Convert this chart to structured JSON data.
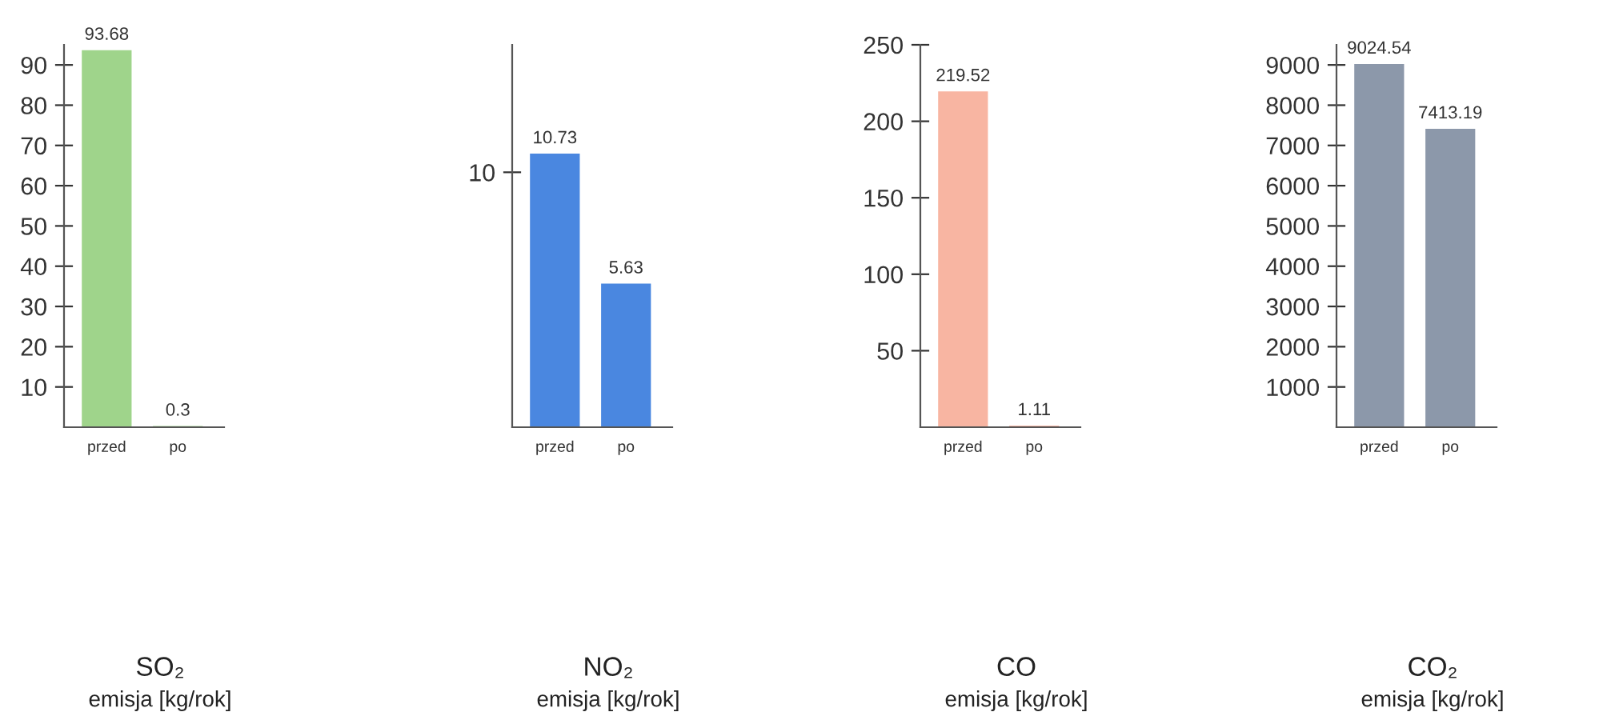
{
  "chart_data": [
    {
      "type": "bar",
      "title": "SO₂",
      "subtitle": "emisja [kg/rok]",
      "categories": [
        "przed",
        "po"
      ],
      "values": [
        93.68,
        0.3
      ],
      "colors": [
        "#9fd48b",
        "#9fd48b"
      ],
      "ylim": [
        0,
        95
      ],
      "yticks": [
        10,
        20,
        30,
        40,
        50,
        60,
        70,
        80,
        90
      ],
      "data_labels": true,
      "grid": false,
      "legend": false
    },
    {
      "type": "bar",
      "title": "NO₂",
      "subtitle": "emisja [kg/rok]",
      "categories": [
        "przed",
        "po"
      ],
      "values": [
        10.73,
        5.63
      ],
      "colors": [
        "#4a87e0",
        "#4a87e0"
      ],
      "ylim": [
        0,
        15
      ],
      "yticks": [
        10
      ],
      "data_labels": true,
      "grid": false,
      "legend": false
    },
    {
      "type": "bar",
      "title": "CO",
      "subtitle": "emisja [kg/rok]",
      "categories": [
        "przed",
        "po"
      ],
      "values": [
        219.52,
        1.11
      ],
      "colors": [
        "#f8b5a2",
        "#f8b5a2"
      ],
      "ylim": [
        0,
        250
      ],
      "yticks": [
        50,
        100,
        150,
        200,
        250
      ],
      "data_labels": true,
      "grid": false,
      "legend": false
    },
    {
      "type": "bar",
      "title": "CO₂",
      "subtitle": "emisja [kg/rok]",
      "categories": [
        "przed",
        "po"
      ],
      "values": [
        9024.54,
        7413.19
      ],
      "colors": [
        "#8c98aa",
        "#8c98aa"
      ],
      "ylim": [
        0,
        9500
      ],
      "yticks": [
        1000,
        2000,
        3000,
        4000,
        5000,
        6000,
        7000,
        8000,
        9000
      ],
      "data_labels": true,
      "grid": false,
      "legend": false
    }
  ]
}
